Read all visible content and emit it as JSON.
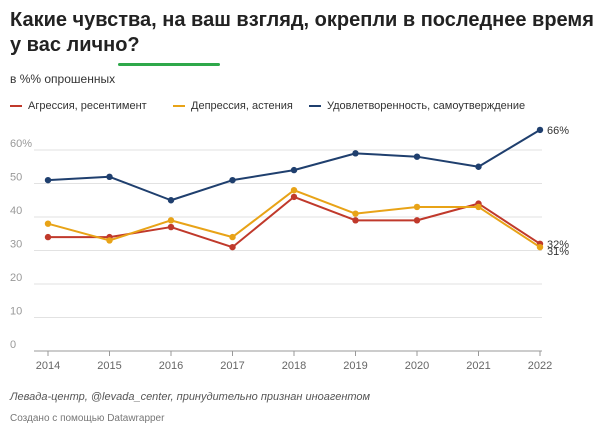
{
  "header": {
    "title": "Какие чувства, на ваш взгляд, окрепли в последнее время у вас лично?",
    "subtitle": "в %% опрошенных",
    "accent_color": "#2ea84a"
  },
  "footer": {
    "source": "Левада-центр, @levada_center, принудительно признан иноагентом",
    "credit": "Создано с помощью Datawrapper"
  },
  "chart_data": {
    "type": "line",
    "x": [
      "2014",
      "2015",
      "2016",
      "2017",
      "2018",
      "2019",
      "2020",
      "2021",
      "2022"
    ],
    "ylim": [
      0,
      60
    ],
    "yticks": [
      "0",
      "10",
      "20",
      "30",
      "40",
      "50",
      "60%"
    ],
    "grid": true,
    "legend_position": "top",
    "series": [
      {
        "name": "Агрессия, ресентимент",
        "color": "#c0392b",
        "values": [
          34,
          34,
          37,
          31,
          46,
          39,
          39,
          44,
          32
        ],
        "end_label": "32%"
      },
      {
        "name": "Депрессия, астения",
        "color": "#e8a317",
        "values": [
          38,
          33,
          39,
          34,
          48,
          41,
          43,
          43,
          31
        ],
        "end_label": "31%"
      },
      {
        "name": "Удовлетворенность, самоутверждение",
        "color": "#1f3f6e",
        "values": [
          51,
          52,
          45,
          51,
          54,
          59,
          58,
          55,
          66
        ],
        "end_label": "66%"
      }
    ]
  }
}
